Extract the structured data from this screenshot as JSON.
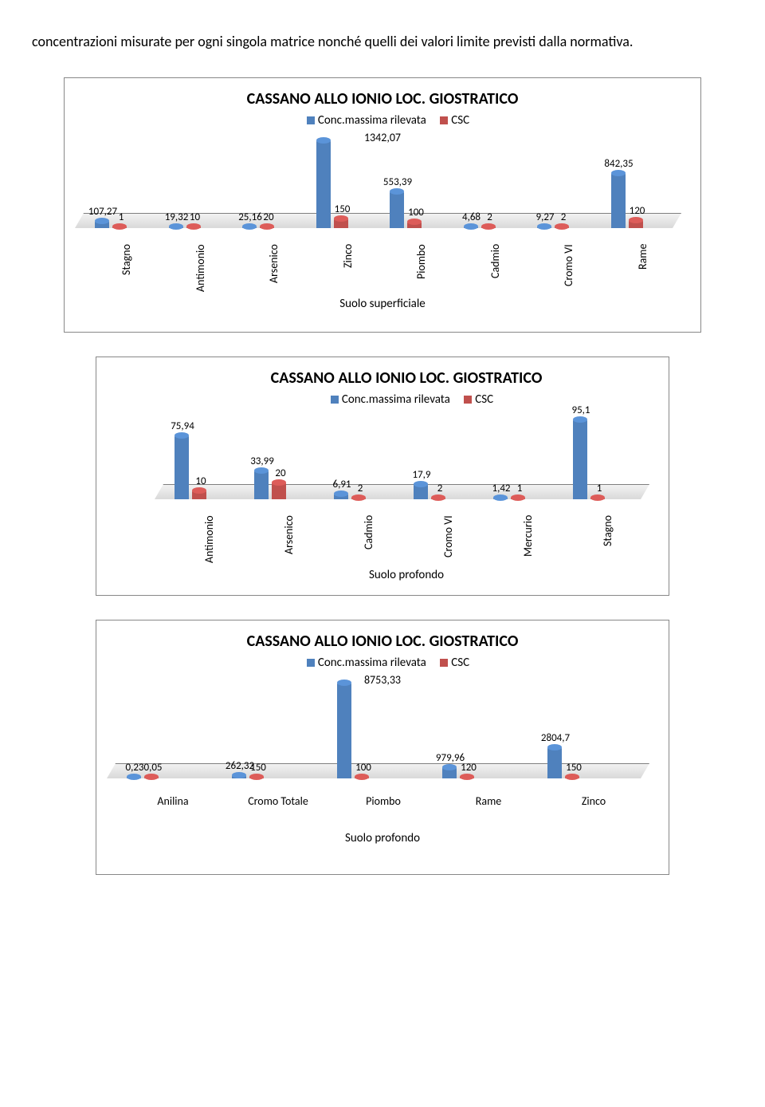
{
  "intro_text": "concentrazioni misurate per ogni singola matrice nonché quelli dei valori limite previsti dalla normativa.",
  "colors": {
    "series_a": "#4f81bd",
    "series_b": "#c0504d",
    "border": "#888888",
    "text": "#000000",
    "floor_top": "#f2f2f2",
    "floor_bottom": "#d9d9d9"
  },
  "chart1": {
    "title": "CASSANO ALLO IONIO LOC. GIOSTRATICO",
    "legend_a": "Conc.massima rilevata",
    "legend_b": "CSC",
    "subtitle": "Suolo superficiale",
    "max_display": 1342.07,
    "categories": [
      "Stagno",
      "Antimonio",
      "Arsenico",
      "Zinco",
      "Piombo",
      "Cadmio",
      "Cromo VI",
      "Rame"
    ],
    "a": [
      107.27,
      19.32,
      25.16,
      1342.07,
      553.39,
      4.68,
      9.27,
      842.35
    ],
    "b": [
      1,
      10,
      20,
      150,
      100,
      2,
      2,
      120
    ],
    "a_labels": [
      "107,27",
      "19,32",
      "25,16",
      "1342,07",
      "553,39",
      "4,68",
      "9,27",
      "842,35"
    ],
    "b_labels": [
      "1",
      "10",
      "20",
      "150",
      "100",
      "2",
      "2",
      "120"
    ]
  },
  "chart2": {
    "title": "CASSANO ALLO IONIO LOC. GIOSTRATICO",
    "legend_a": "Conc.massima rilevata",
    "legend_b": "CSC",
    "subtitle": "Suolo profondo",
    "max_display": 95.1,
    "categories": [
      "Antimonio",
      "Arsenico",
      "Cadmio",
      "Cromo VI",
      "Mercurio",
      "Stagno"
    ],
    "a": [
      75.94,
      33.99,
      6.91,
      17.9,
      1.42,
      95.1
    ],
    "b": [
      10,
      20,
      2,
      2,
      1,
      1
    ],
    "a_labels": [
      "75,94",
      "33,99",
      "6,91",
      "17,9",
      "1,42",
      "95,1"
    ],
    "b_labels": [
      "10",
      "20",
      "2",
      "2",
      "1",
      "1"
    ]
  },
  "chart3": {
    "title": "CASSANO ALLO IONIO LOC. GIOSTRATICO",
    "legend_a": "Conc.massima rilevata",
    "legend_b": "CSC",
    "subtitle": "Suolo profondo",
    "max_display": 8753.33,
    "categories": [
      "Anilina",
      "Cromo Totale",
      "Piombo",
      "Rame",
      "Zinco"
    ],
    "a": [
      0.23,
      262.32,
      8753.33,
      979.96,
      2804.7
    ],
    "b": [
      0.05,
      150,
      100,
      120,
      150
    ],
    "a_labels": [
      "0,23",
      "262,32",
      "8753,33",
      "979,96",
      "2804,7"
    ],
    "b_labels": [
      "0,05",
      "150",
      "100",
      "120",
      "150"
    ]
  }
}
